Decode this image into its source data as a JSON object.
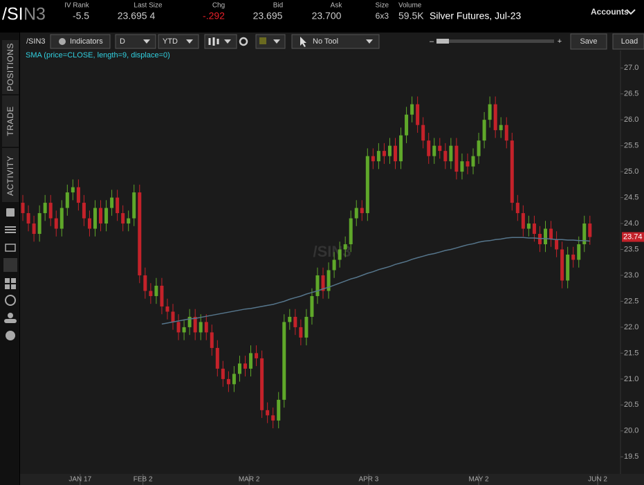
{
  "header": {
    "symbol_root": "/SI",
    "symbol_suffix": "N3",
    "stats": [
      {
        "label": "IV Rank",
        "value": "-5.5"
      },
      {
        "label": "Last Size",
        "value": "23.695 4"
      },
      {
        "label": "Chg",
        "value": "-.292"
      },
      {
        "label": "Bid",
        "value": "23.695"
      },
      {
        "label": "Ask",
        "value": "23.700"
      },
      {
        "label": "Size",
        "value": "6x3"
      },
      {
        "label": "Volume",
        "value": "59.5K"
      }
    ],
    "description": "Silver Futures, Jul-23",
    "accounts": "Accounts"
  },
  "toolbar": {
    "symbol": "/SIN3",
    "indicators": "Indicators",
    "aggregation": "D",
    "range": "YTD",
    "tool": "No Tool",
    "zoom_out": "–",
    "zoom_in": "+",
    "save": "Save",
    "load": "Load"
  },
  "sidebar": {
    "tabs": [
      "POSITIONS",
      "TRADE",
      "ACTIVITY"
    ]
  },
  "chart_data": {
    "type": "candlestick",
    "watermark": "/SIN3",
    "up_color": "#5fa82a",
    "down_color": "#c4222a",
    "xlim": [
      -0.5,
      107.5
    ],
    "xticks": [
      {
        "value": 10.3,
        "label": "JAN 17"
      },
      {
        "value": 21.6,
        "label": "FEB 2"
      },
      {
        "value": 40.7,
        "label": "MAR 2"
      },
      {
        "value": 62.2,
        "label": "APR 3"
      },
      {
        "value": 82.0,
        "label": "MAY 2"
      },
      {
        "value": 103.4,
        "label": "JUN 2"
      }
    ],
    "ylim": [
      19.17,
      27.31
    ],
    "yticks": [
      19.5,
      {
        "value": 20,
        "label": "20.0"
      },
      20.5,
      {
        "value": 21,
        "label": "21.0"
      },
      21.5,
      {
        "value": 22,
        "label": "22.0"
      },
      22.5,
      {
        "value": 23,
        "label": "23.0"
      },
      23.5,
      {
        "value": 24,
        "label": "24.0"
      },
      24.5,
      {
        "value": 25,
        "label": "25.0"
      },
      25.5,
      {
        "value": 26,
        "label": "26.0"
      },
      26.5,
      {
        "value": 27,
        "label": "27.0"
      }
    ],
    "open": [
      24.4,
      24.2,
      24.0,
      23.8,
      24.2,
      24.4,
      24.1,
      23.9,
      24.3,
      24.6,
      24.7,
      24.4,
      24.1,
      23.9,
      24.3,
      24.0,
      24.3,
      24.5,
      24.2,
      24.0,
      24.1,
      24.6,
      23.0,
      22.7,
      22.6,
      22.8,
      22.4,
      22.3,
      22.1,
      21.9,
      22.0,
      22.2,
      21.9,
      22.1,
      21.9,
      21.6,
      21.2,
      21.0,
      20.9,
      21.1,
      21.3,
      21.2,
      21.5,
      21.4,
      20.4,
      20.3,
      20.2,
      20.6,
      22.1,
      22.2,
      22.0,
      21.8,
      22.2,
      22.6,
      23.0,
      22.7,
      23.1,
      23.3,
      23.5,
      23.6,
      24.1,
      24.3,
      24.2,
      25.3,
      25.2,
      25.4,
      25.3,
      25.5,
      25.2,
      25.7,
      26.1,
      26.3,
      25.9,
      25.6,
      25.3,
      25.5,
      25.4,
      25.2,
      25.5,
      25.0,
      25.2,
      25.1,
      25.3,
      25.6,
      26.0,
      26.3,
      25.8,
      25.9,
      25.6,
      24.4,
      24.2,
      23.9,
      24.0,
      23.8,
      23.6,
      23.9,
      23.7,
      23.5,
      22.9,
      23.4,
      23.3,
      23.6,
      24.0
    ],
    "high": [
      24.55,
      24.35,
      24.15,
      24.35,
      24.55,
      24.55,
      24.25,
      24.45,
      24.75,
      24.85,
      24.85,
      24.55,
      24.25,
      24.45,
      24.45,
      24.45,
      24.65,
      24.65,
      24.35,
      24.25,
      24.75,
      24.75,
      23.15,
      22.85,
      22.95,
      22.95,
      22.55,
      22.45,
      22.25,
      22.15,
      22.35,
      22.35,
      22.25,
      22.25,
      22.05,
      21.75,
      21.35,
      21.15,
      21.25,
      21.45,
      21.45,
      21.65,
      21.65,
      21.55,
      20.55,
      20.45,
      20.75,
      22.25,
      22.35,
      22.35,
      22.15,
      22.35,
      22.75,
      23.15,
      23.15,
      23.25,
      23.45,
      23.65,
      23.75,
      24.25,
      24.45,
      24.45,
      25.45,
      25.45,
      25.55,
      25.55,
      25.65,
      25.65,
      25.85,
      26.25,
      26.45,
      26.45,
      26.05,
      25.75,
      25.65,
      25.65,
      25.55,
      25.65,
      25.65,
      25.35,
      25.35,
      25.45,
      25.75,
      26.15,
      26.45,
      26.45,
      26.05,
      26.05,
      25.75,
      24.55,
      24.35,
      24.15,
      24.15,
      23.95,
      24.05,
      24.05,
      23.85,
      23.65,
      23.55,
      23.55,
      23.75,
      24.15,
      24.15
    ],
    "low": [
      24.05,
      23.85,
      23.65,
      23.65,
      24.05,
      23.95,
      23.75,
      23.75,
      24.15,
      24.45,
      24.25,
      23.95,
      23.75,
      23.75,
      23.85,
      23.85,
      24.15,
      24.05,
      23.85,
      23.85,
      23.95,
      22.85,
      22.55,
      22.45,
      22.45,
      22.25,
      22.15,
      21.95,
      21.75,
      21.75,
      21.85,
      21.75,
      21.75,
      21.75,
      21.45,
      21.05,
      20.85,
      20.75,
      20.75,
      20.95,
      21.05,
      21.05,
      21.25,
      20.25,
      20.15,
      20.05,
      20.05,
      20.45,
      21.95,
      21.85,
      21.65,
      21.65,
      22.05,
      22.45,
      22.55,
      22.55,
      22.95,
      23.15,
      23.35,
      23.45,
      23.95,
      24.05,
      24.05,
      25.05,
      25.05,
      25.15,
      25.15,
      25.05,
      25.05,
      25.55,
      25.95,
      25.75,
      25.45,
      25.15,
      25.15,
      25.25,
      25.05,
      25.05,
      24.85,
      24.85,
      24.95,
      24.95,
      25.15,
      25.45,
      25.85,
      25.65,
      25.65,
      25.45,
      24.25,
      24.05,
      23.75,
      23.75,
      23.65,
      23.45,
      23.45,
      23.55,
      23.35,
      22.75,
      22.75,
      23.15,
      23.15,
      23.45,
      23.59
    ],
    "close": [
      24.2,
      24.0,
      23.8,
      24.2,
      24.4,
      24.1,
      23.9,
      24.3,
      24.6,
      24.7,
      24.4,
      24.1,
      23.9,
      24.3,
      24.0,
      24.3,
      24.5,
      24.2,
      24.0,
      24.1,
      24.6,
      23.0,
      22.7,
      22.6,
      22.8,
      22.4,
      22.3,
      22.1,
      21.9,
      22.0,
      22.2,
      21.9,
      22.1,
      21.9,
      21.6,
      21.2,
      21.0,
      20.9,
      21.1,
      21.3,
      21.2,
      21.5,
      21.4,
      20.4,
      20.3,
      20.2,
      20.6,
      22.1,
      22.2,
      22.0,
      21.8,
      22.2,
      22.6,
      23.0,
      22.7,
      23.1,
      23.3,
      23.5,
      23.6,
      24.1,
      24.3,
      24.2,
      25.3,
      25.2,
      25.4,
      25.3,
      25.5,
      25.2,
      25.7,
      26.1,
      26.3,
      25.9,
      25.6,
      25.3,
      25.5,
      25.4,
      25.2,
      25.5,
      25.0,
      25.2,
      25.1,
      25.3,
      25.6,
      26.0,
      26.3,
      25.8,
      25.9,
      25.6,
      24.4,
      24.2,
      23.9,
      24.0,
      23.8,
      23.6,
      23.9,
      23.7,
      23.5,
      22.9,
      23.4,
      23.3,
      23.6,
      24.0,
      23.74
    ],
    "sma": {
      "name": "SMA (price=CLOSE, length=9, displace=0)",
      "color": "#56768c",
      "values": [
        null,
        null,
        null,
        null,
        null,
        null,
        null,
        null,
        null,
        null,
        null,
        null,
        null,
        null,
        null,
        null,
        null,
        null,
        null,
        null,
        null,
        null,
        null,
        null,
        null,
        22.06,
        22.08,
        22.1,
        22.12,
        22.14,
        22.16,
        22.17,
        22.19,
        22.21,
        22.23,
        22.25,
        22.27,
        22.29,
        22.31,
        22.33,
        22.35,
        22.36,
        22.38,
        22.4,
        22.42,
        22.44,
        22.47,
        22.5,
        22.54,
        22.57,
        22.6,
        22.64,
        22.67,
        22.7,
        22.74,
        22.77,
        22.81,
        22.85,
        22.89,
        22.93,
        22.96,
        23.0,
        23.04,
        23.07,
        23.11,
        23.14,
        23.17,
        23.21,
        23.24,
        23.27,
        23.31,
        23.34,
        23.37,
        23.4,
        23.42,
        23.45,
        23.48,
        23.5,
        23.53,
        23.56,
        23.59,
        23.61,
        23.64,
        23.66,
        23.67,
        23.69,
        23.7,
        23.72,
        23.73,
        23.73,
        23.73,
        23.72,
        23.72,
        23.71,
        23.71,
        23.7,
        23.69,
        23.69,
        23.68,
        23.68,
        23.67,
        23.67,
        23.66
      ]
    }
  }
}
